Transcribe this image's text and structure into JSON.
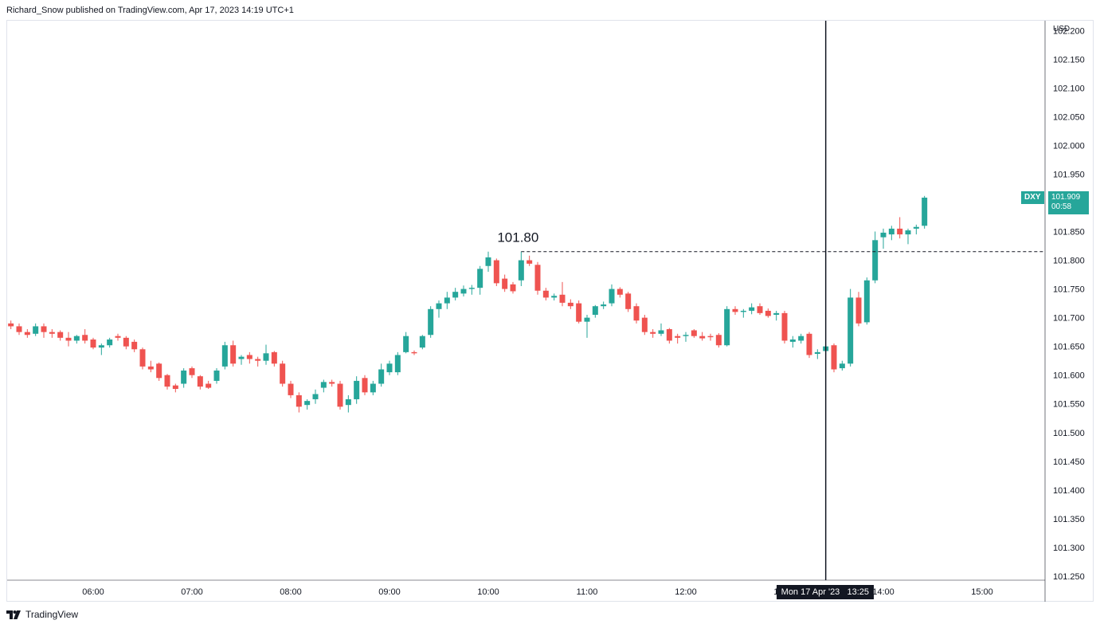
{
  "header": {
    "publisher_line": "Richard_Snow published on TradingView.com, Apr 17, 2023 14:19 UTC+1"
  },
  "footer": {
    "brand": "TradingView",
    "logo_icon": "tradingview-logo-icon"
  },
  "axis": {
    "currency": "USD"
  },
  "ticker": {
    "symbol": "DXY",
    "last_price": "101.909",
    "countdown": "00:58"
  },
  "crosshair": {
    "label_date": "Mon 17 Apr '23",
    "label_time": "13:25"
  },
  "colors": {
    "up": "#26a69a",
    "down": "#ef5350",
    "grid": "#e0e3eb",
    "text": "#131722"
  },
  "chart_data": {
    "type": "candlestick",
    "symbol": "DXY",
    "interval_minutes": 5,
    "first_bar_time": "05:10",
    "x_ticks": [
      "06:00",
      "07:00",
      "08:00",
      "09:00",
      "10:00",
      "11:00",
      "12:00",
      "13:00",
      "14:00",
      "15:00"
    ],
    "y_ticks": [
      "101.250",
      "101.300",
      "101.350",
      "101.400",
      "101.450",
      "101.500",
      "101.550",
      "101.600",
      "101.650",
      "101.700",
      "101.750",
      "101.800",
      "101.850",
      "101.900",
      "101.950",
      "102.000",
      "102.050",
      "102.100",
      "102.150",
      "102.200"
    ],
    "ylim": [
      101.243,
      102.217
    ],
    "annotation": {
      "text": "101.80",
      "level": 101.815
    },
    "crosshair_time": "13:25",
    "ohlc": [
      [
        101.69,
        101.695,
        101.68,
        101.685
      ],
      [
        101.685,
        101.69,
        101.67,
        101.675
      ],
      [
        101.675,
        101.68,
        101.665,
        101.67
      ],
      [
        101.672,
        101.69,
        101.668,
        101.685
      ],
      [
        101.685,
        101.69,
        101.665,
        101.675
      ],
      [
        101.675,
        101.68,
        101.665,
        101.672
      ],
      [
        101.675,
        101.678,
        101.66,
        101.665
      ],
      [
        101.665,
        101.675,
        101.65,
        101.66
      ],
      [
        101.66,
        101.67,
        101.655,
        101.668
      ],
      [
        101.67,
        101.68,
        101.655,
        101.66
      ],
      [
        101.662,
        101.665,
        101.645,
        101.648
      ],
      [
        101.648,
        101.655,
        101.635,
        101.652
      ],
      [
        101.652,
        101.665,
        101.648,
        101.662
      ],
      [
        101.668,
        101.672,
        101.66,
        101.665
      ],
      [
        101.665,
        101.668,
        101.645,
        101.65
      ],
      [
        101.658,
        101.662,
        101.64,
        101.645
      ],
      [
        101.645,
        101.648,
        101.61,
        101.615
      ],
      [
        101.615,
        101.625,
        101.605,
        101.61
      ],
      [
        101.62,
        101.622,
        101.59,
        101.595
      ],
      [
        101.6,
        101.602,
        101.575,
        101.58
      ],
      [
        101.582,
        101.585,
        101.57,
        101.576
      ],
      [
        101.585,
        101.612,
        101.578,
        101.608
      ],
      [
        101.612,
        101.615,
        101.595,
        101.6
      ],
      [
        101.598,
        101.6,
        101.575,
        101.58
      ],
      [
        101.585,
        101.59,
        101.576,
        101.578
      ],
      [
        101.59,
        101.612,
        101.585,
        101.608
      ],
      [
        101.615,
        101.658,
        101.61,
        101.652
      ],
      [
        101.652,
        101.66,
        101.615,
        101.62
      ],
      [
        101.628,
        101.635,
        101.618,
        101.632
      ],
      [
        101.635,
        101.64,
        101.62,
        101.628
      ],
      [
        101.628,
        101.632,
        101.615,
        101.625
      ],
      [
        101.625,
        101.653,
        101.618,
        101.638
      ],
      [
        101.64,
        101.642,
        101.615,
        101.62
      ],
      [
        101.62,
        101.625,
        101.58,
        101.585
      ],
      [
        101.585,
        101.59,
        101.56,
        101.565
      ],
      [
        101.565,
        101.57,
        101.535,
        101.545
      ],
      [
        101.548,
        101.558,
        101.54,
        101.555
      ],
      [
        101.558,
        101.575,
        101.55,
        101.567
      ],
      [
        101.578,
        101.592,
        101.57,
        101.588
      ],
      [
        101.588,
        101.592,
        101.58,
        101.585
      ],
      [
        101.585,
        101.59,
        101.54,
        101.545
      ],
      [
        101.548,
        101.565,
        101.535,
        101.558
      ],
      [
        101.558,
        101.598,
        101.55,
        101.59
      ],
      [
        101.595,
        101.6,
        101.565,
        101.57
      ],
      [
        101.57,
        101.59,
        101.565,
        101.585
      ],
      [
        101.585,
        101.62,
        101.58,
        101.61
      ],
      [
        101.605,
        101.625,
        101.6,
        101.62
      ],
      [
        101.605,
        101.64,
        101.6,
        101.635
      ],
      [
        101.64,
        101.675,
        101.638,
        101.668
      ],
      [
        101.64,
        101.643,
        101.635,
        101.638
      ],
      [
        101.648,
        101.67,
        101.645,
        101.668
      ],
      [
        101.67,
        101.72,
        101.665,
        101.715
      ],
      [
        101.715,
        101.73,
        101.7,
        101.725
      ],
      [
        101.725,
        101.745,
        101.715,
        101.735
      ],
      [
        101.735,
        101.752,
        101.73,
        101.745
      ],
      [
        101.742,
        101.756,
        101.737,
        101.75
      ],
      [
        101.75,
        101.757,
        101.74,
        101.752
      ],
      [
        101.752,
        101.79,
        101.74,
        101.785
      ],
      [
        101.79,
        101.815,
        101.78,
        101.805
      ],
      [
        101.8,
        101.803,
        101.755,
        101.76
      ],
      [
        101.768,
        101.775,
        101.745,
        101.75
      ],
      [
        101.758,
        101.762,
        101.742,
        101.746
      ],
      [
        101.765,
        101.815,
        101.755,
        101.8
      ],
      [
        101.8,
        101.808,
        101.79,
        101.794
      ],
      [
        101.792,
        101.797,
        101.74,
        101.747
      ],
      [
        101.747,
        101.752,
        101.73,
        101.735
      ],
      [
        101.735,
        101.742,
        101.73,
        101.738
      ],
      [
        101.74,
        101.762,
        101.72,
        101.726
      ],
      [
        101.726,
        101.732,
        101.715,
        101.72
      ],
      [
        101.725,
        101.73,
        101.69,
        101.693
      ],
      [
        101.693,
        101.705,
        101.665,
        101.7
      ],
      [
        101.705,
        101.722,
        101.7,
        101.72
      ],
      [
        101.72,
        101.728,
        101.715,
        101.723
      ],
      [
        101.725,
        101.758,
        101.72,
        101.75
      ],
      [
        101.75,
        101.753,
        101.735,
        101.74
      ],
      [
        101.742,
        101.745,
        101.71,
        101.715
      ],
      [
        101.72,
        101.725,
        101.69,
        101.695
      ],
      [
        101.7,
        101.705,
        101.67,
        101.675
      ],
      [
        101.675,
        101.68,
        101.665,
        101.672
      ],
      [
        101.672,
        101.69,
        101.668,
        101.678
      ],
      [
        101.68,
        101.682,
        101.655,
        101.66
      ],
      [
        101.668,
        101.672,
        101.655,
        101.665
      ],
      [
        101.668,
        101.675,
        101.658,
        101.67
      ],
      [
        101.678,
        101.68,
        101.665,
        101.668
      ],
      [
        101.668,
        101.675,
        101.66,
        101.664
      ],
      [
        101.668,
        101.672,
        101.66,
        101.666
      ],
      [
        101.67,
        101.673,
        101.648,
        101.652
      ],
      [
        101.652,
        101.72,
        101.65,
        101.715
      ],
      [
        101.715,
        101.72,
        101.705,
        101.71
      ],
      [
        101.71,
        101.715,
        101.7,
        101.712
      ],
      [
        101.712,
        101.725,
        101.706,
        101.718
      ],
      [
        101.72,
        101.725,
        101.705,
        101.708
      ],
      [
        101.712,
        101.716,
        101.7,
        101.703
      ],
      [
        101.705,
        101.712,
        101.695,
        101.708
      ],
      [
        101.708,
        101.712,
        101.655,
        101.66
      ],
      [
        101.658,
        101.668,
        101.648,
        101.662
      ],
      [
        101.66,
        101.672,
        101.655,
        101.668
      ],
      [
        101.672,
        101.675,
        101.63,
        101.635
      ],
      [
        101.637,
        101.645,
        101.628,
        101.64
      ],
      [
        101.642,
        101.652,
        101.635,
        101.65
      ],
      [
        101.652,
        101.655,
        101.605,
        101.61
      ],
      [
        101.612,
        101.625,
        101.608,
        101.62
      ],
      [
        101.62,
        101.75,
        101.615,
        101.735
      ],
      [
        101.735,
        101.745,
        101.685,
        101.69
      ],
      [
        101.692,
        101.77,
        101.688,
        101.765
      ],
      [
        101.765,
        101.85,
        101.76,
        101.835
      ],
      [
        101.84,
        101.855,
        101.82,
        101.848
      ],
      [
        101.845,
        101.86,
        101.835,
        101.855
      ],
      [
        101.855,
        101.875,
        101.838,
        101.845
      ],
      [
        101.845,
        101.855,
        101.828,
        101.852
      ],
      [
        101.855,
        101.862,
        101.845,
        101.858
      ],
      [
        101.86,
        101.912,
        101.855,
        101.909
      ]
    ]
  }
}
